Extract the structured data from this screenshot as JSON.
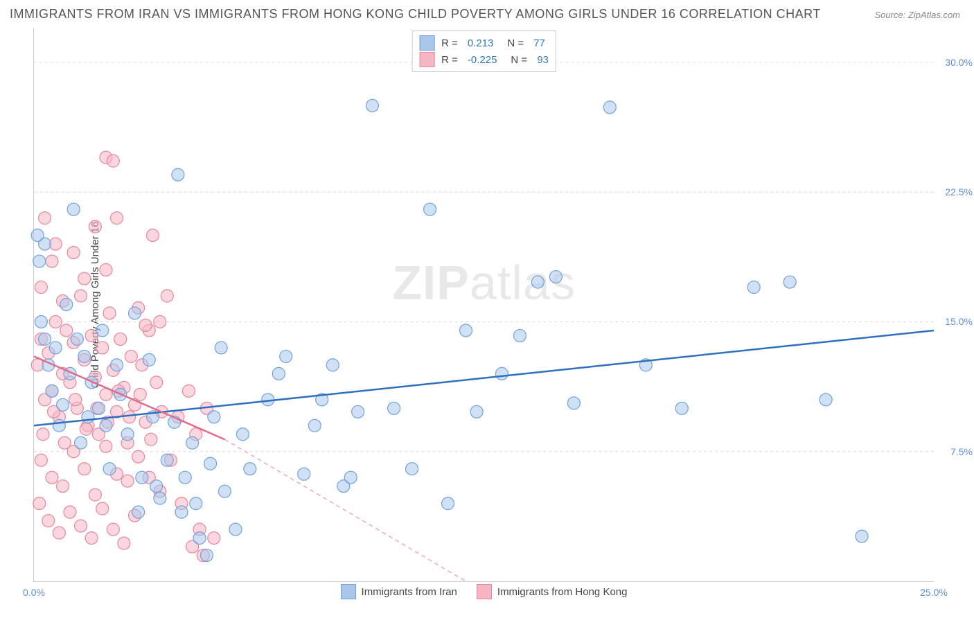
{
  "title": "IMMIGRANTS FROM IRAN VS IMMIGRANTS FROM HONG KONG CHILD POVERTY AMONG GIRLS UNDER 16 CORRELATION CHART",
  "source": "Source: ZipAtlas.com",
  "watermark_bold": "ZIP",
  "watermark_light": "atlas",
  "y_axis_title": "Child Poverty Among Girls Under 16",
  "chart": {
    "type": "scatter",
    "xlim": [
      0,
      25
    ],
    "ylim": [
      0,
      32
    ],
    "x_ticks": [
      0,
      25
    ],
    "x_tick_labels": [
      "0.0%",
      "25.0%"
    ],
    "y_ticks": [
      7.5,
      15.0,
      22.5,
      30.0
    ],
    "y_tick_labels": [
      "7.5%",
      "15.0%",
      "22.5%",
      "30.0%"
    ],
    "grid_color": "#d8d8d8",
    "background_color": "#ffffff",
    "marker_radius": 9,
    "marker_opacity": 0.55,
    "series": [
      {
        "name": "Immigrants from Iran",
        "color_fill": "#a9c7ec",
        "color_stroke": "#6fa1dc",
        "r": "0.213",
        "n": "77",
        "trend": {
          "x1": 0,
          "y1": 9.0,
          "x2": 25,
          "y2": 14.5,
          "color": "#2e6fc0",
          "width": 2.5
        },
        "points": [
          [
            0.2,
            15.0
          ],
          [
            0.3,
            19.5
          ],
          [
            0.5,
            11.0
          ],
          [
            1.1,
            21.5
          ],
          [
            0.4,
            12.5
          ],
          [
            0.8,
            10.2
          ],
          [
            1.0,
            12.0
          ],
          [
            1.3,
            8.0
          ],
          [
            1.5,
            9.5
          ],
          [
            1.8,
            10.0
          ],
          [
            2.0,
            9.0
          ],
          [
            2.3,
            12.5
          ],
          [
            2.6,
            8.5
          ],
          [
            2.8,
            15.5
          ],
          [
            3.0,
            6.0
          ],
          [
            3.3,
            9.5
          ],
          [
            3.5,
            4.8
          ],
          [
            3.7,
            7.0
          ],
          [
            4.0,
            23.5
          ],
          [
            4.2,
            6.0
          ],
          [
            4.5,
            4.5
          ],
          [
            4.6,
            2.5
          ],
          [
            5.0,
            9.5
          ],
          [
            5.3,
            5.2
          ],
          [
            4.8,
            1.5
          ],
          [
            5.6,
            3.0
          ],
          [
            6.0,
            6.5
          ],
          [
            7.0,
            13.0
          ],
          [
            7.5,
            6.2
          ],
          [
            8.0,
            10.5
          ],
          [
            8.3,
            12.5
          ],
          [
            8.6,
            5.5
          ],
          [
            9.4,
            27.5
          ],
          [
            10.5,
            6.5
          ],
          [
            11.0,
            21.5
          ],
          [
            11.5,
            4.5
          ],
          [
            12.0,
            14.5
          ],
          [
            12.3,
            9.8
          ],
          [
            13.0,
            12.0
          ],
          [
            13.5,
            14.2
          ],
          [
            14.0,
            17.3
          ],
          [
            14.5,
            17.6
          ],
          [
            15.0,
            10.3
          ],
          [
            16.0,
            27.4
          ],
          [
            17.0,
            12.5
          ],
          [
            18.0,
            10.0
          ],
          [
            21.0,
            17.3
          ],
          [
            20.0,
            17.0
          ],
          [
            22.0,
            10.5
          ],
          [
            23.0,
            2.6
          ],
          [
            0.1,
            20.0
          ],
          [
            0.6,
            13.5
          ],
          [
            1.2,
            14.0
          ],
          [
            1.6,
            11.5
          ],
          [
            2.4,
            10.8
          ],
          [
            3.2,
            12.8
          ],
          [
            3.9,
            9.2
          ],
          [
            4.4,
            8.0
          ],
          [
            5.8,
            8.5
          ],
          [
            6.5,
            10.5
          ],
          [
            7.8,
            9.0
          ],
          [
            9.0,
            9.8
          ],
          [
            10.0,
            10.0
          ],
          [
            2.1,
            6.5
          ],
          [
            2.9,
            4.0
          ],
          [
            3.4,
            5.5
          ],
          [
            4.1,
            4.0
          ],
          [
            4.9,
            6.8
          ],
          [
            5.2,
            13.5
          ],
          [
            1.9,
            14.5
          ],
          [
            0.9,
            16.0
          ],
          [
            0.3,
            14.0
          ],
          [
            1.4,
            13.0
          ],
          [
            6.8,
            12.0
          ],
          [
            0.15,
            18.5
          ],
          [
            0.7,
            9.0
          ],
          [
            8.8,
            6.0
          ]
        ]
      },
      {
        "name": "Immigrants from Hong Kong",
        "color_fill": "#f5b6c4",
        "color_stroke": "#e8849c",
        "r": "-0.225",
        "n": "93",
        "trend_solid": {
          "x1": 0,
          "y1": 13.0,
          "x2": 5.3,
          "y2": 8.2,
          "color": "#e06b8b",
          "width": 2.5
        },
        "trend_dashed": {
          "x1": 5.3,
          "y1": 8.2,
          "x2": 12.0,
          "y2": 0,
          "color": "#f0a8b8",
          "width": 1.5
        },
        "points": [
          [
            0.1,
            12.5
          ],
          [
            0.2,
            14.0
          ],
          [
            0.3,
            10.5
          ],
          [
            0.4,
            13.2
          ],
          [
            0.5,
            11.0
          ],
          [
            0.6,
            15.0
          ],
          [
            0.7,
            9.5
          ],
          [
            0.8,
            12.0
          ],
          [
            0.9,
            14.5
          ],
          [
            1.0,
            11.5
          ],
          [
            1.1,
            13.8
          ],
          [
            1.2,
            10.0
          ],
          [
            1.3,
            16.5
          ],
          [
            1.4,
            12.8
          ],
          [
            1.5,
            9.0
          ],
          [
            1.6,
            14.2
          ],
          [
            1.7,
            11.8
          ],
          [
            1.8,
            8.5
          ],
          [
            1.9,
            13.5
          ],
          [
            2.0,
            10.8
          ],
          [
            2.1,
            15.5
          ],
          [
            2.2,
            12.2
          ],
          [
            2.3,
            9.8
          ],
          [
            2.4,
            14.0
          ],
          [
            2.5,
            11.2
          ],
          [
            2.6,
            8.0
          ],
          [
            2.7,
            13.0
          ],
          [
            2.8,
            10.2
          ],
          [
            2.9,
            15.8
          ],
          [
            3.0,
            12.5
          ],
          [
            3.1,
            9.2
          ],
          [
            3.2,
            14.5
          ],
          [
            0.2,
            17.0
          ],
          [
            0.5,
            18.5
          ],
          [
            0.8,
            16.2
          ],
          [
            1.1,
            19.0
          ],
          [
            1.4,
            17.5
          ],
          [
            1.7,
            20.5
          ],
          [
            2.0,
            18.0
          ],
          [
            2.3,
            21.0
          ],
          [
            2.0,
            24.5
          ],
          [
            2.2,
            24.3
          ],
          [
            0.3,
            21.0
          ],
          [
            0.6,
            19.5
          ],
          [
            3.3,
            20.0
          ],
          [
            3.5,
            15.0
          ],
          [
            3.7,
            16.5
          ],
          [
            0.2,
            7.0
          ],
          [
            0.5,
            6.0
          ],
          [
            0.8,
            5.5
          ],
          [
            1.1,
            7.5
          ],
          [
            1.4,
            6.5
          ],
          [
            1.7,
            5.0
          ],
          [
            2.0,
            7.8
          ],
          [
            2.3,
            6.2
          ],
          [
            2.6,
            5.8
          ],
          [
            2.9,
            7.2
          ],
          [
            3.2,
            6.0
          ],
          [
            3.5,
            5.2
          ],
          [
            3.8,
            7.0
          ],
          [
            4.0,
            9.5
          ],
          [
            4.1,
            4.5
          ],
          [
            4.3,
            11.0
          ],
          [
            4.4,
            2.0
          ],
          [
            4.5,
            8.5
          ],
          [
            4.6,
            3.0
          ],
          [
            4.7,
            1.5
          ],
          [
            4.8,
            10.0
          ],
          [
            5.0,
            2.5
          ],
          [
            0.15,
            4.5
          ],
          [
            0.4,
            3.5
          ],
          [
            0.7,
            2.8
          ],
          [
            1.0,
            4.0
          ],
          [
            1.3,
            3.2
          ],
          [
            1.6,
            2.5
          ],
          [
            1.9,
            4.2
          ],
          [
            2.2,
            3.0
          ],
          [
            2.5,
            2.2
          ],
          [
            2.8,
            3.8
          ],
          [
            3.1,
            14.8
          ],
          [
            3.4,
            11.5
          ],
          [
            0.25,
            8.5
          ],
          [
            0.55,
            9.8
          ],
          [
            0.85,
            8.0
          ],
          [
            1.15,
            10.5
          ],
          [
            1.45,
            8.8
          ],
          [
            1.75,
            10.0
          ],
          [
            2.05,
            9.2
          ],
          [
            2.35,
            11.0
          ],
          [
            2.65,
            9.5
          ],
          [
            2.95,
            10.8
          ],
          [
            3.25,
            8.2
          ],
          [
            3.55,
            9.8
          ]
        ]
      }
    ]
  },
  "legend_labels": {
    "r_label": "R =",
    "n_label": "N ="
  },
  "bottom_legend": {
    "iran": "Immigrants from Iran",
    "hk": "Immigrants from Hong Kong"
  }
}
